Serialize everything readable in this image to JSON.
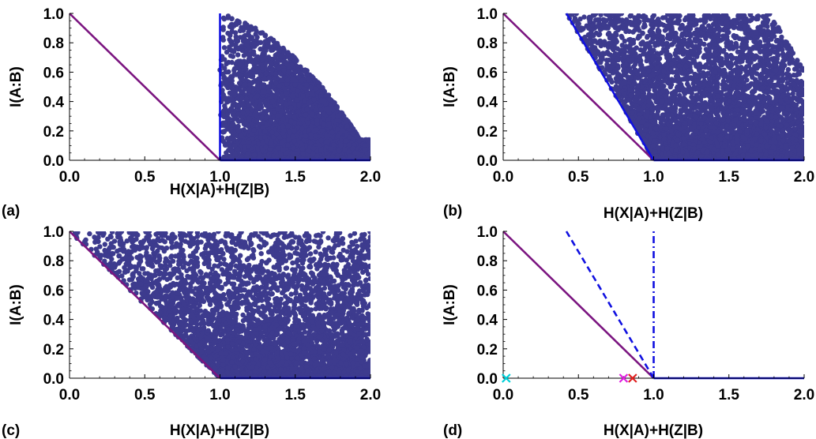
{
  "figure": {
    "panels": [
      {
        "label": "(a)",
        "xlabel": "H(X|A)+H(Z|B)",
        "ylabel": "I(A:B)"
      },
      {
        "label": "(b)",
        "xlabel": "H(X|A)+H(Z|B)",
        "ylabel": "I(A:B)"
      },
      {
        "label": "(c)",
        "xlabel": "H(X|A)+H(Z|B)",
        "ylabel": "I(A:B)"
      },
      {
        "label": "(d)",
        "xlabel": "H(X|A)+H(Z|B)",
        "ylabel": "I(A:B)"
      }
    ]
  },
  "colors": {
    "points": "#3d3b8e",
    "bound_purple": "#7b1580",
    "bound_blue": "#1010e0",
    "marker_cyan": "#00cfd8",
    "marker_magenta": "#e020e0",
    "marker_red": "#e02020"
  },
  "chart_data": [
    {
      "type": "scatter",
      "panel": "a",
      "xlabel": "H(X|A)+H(Z|B)",
      "ylabel": "I(A:B)",
      "xlim": [
        0,
        2
      ],
      "ylim": [
        0,
        1
      ],
      "xticks": [
        "0.0",
        "0.5",
        "1.0",
        "1.5",
        "2.0"
      ],
      "yticks": [
        "0.0",
        "0.2",
        "0.4",
        "0.6",
        "0.8",
        "1.0"
      ],
      "grid": false,
      "lines": [
        {
          "color": "purple",
          "style": "solid",
          "points": [
            [
              0,
              1
            ],
            [
              1,
              0
            ]
          ]
        },
        {
          "color": "blue",
          "style": "solid",
          "points": [
            [
              1,
              0
            ],
            [
              1,
              1
            ]
          ]
        },
        {
          "color": "blue",
          "style": "solid",
          "points": [
            [
              1,
              0
            ],
            [
              2,
              0
            ]
          ]
        }
      ],
      "scatter_region": {
        "description_points": [
          [
            1.0,
            1.0
          ],
          [
            1.2,
            1.0
          ],
          [
            1.5,
            0.55
          ],
          [
            1.75,
            0.35
          ],
          [
            2.0,
            0.15
          ],
          [
            2.0,
            0.0
          ],
          [
            1.0,
            0.0
          ]
        ],
        "sample_points": [
          [
            1.02,
            0.95
          ],
          [
            1.1,
            0.9
          ],
          [
            1.2,
            0.95
          ],
          [
            1.3,
            0.75
          ],
          [
            1.45,
            0.6
          ],
          [
            1.6,
            0.45
          ],
          [
            1.8,
            0.3
          ],
          [
            1.95,
            0.18
          ],
          [
            1.5,
            0.2
          ],
          [
            1.3,
            0.1
          ],
          [
            1.7,
            0.05
          ],
          [
            1.05,
            0.5
          ]
        ]
      }
    },
    {
      "type": "scatter",
      "panel": "b",
      "xlabel": "H(X|A)+H(Z|B)",
      "ylabel": "I(A:B)",
      "xlim": [
        0,
        2
      ],
      "ylim": [
        0,
        1
      ],
      "xticks": [
        "0.0",
        "0.5",
        "1.0",
        "1.5",
        "2.0"
      ],
      "yticks": [
        "0.0",
        "0.2",
        "0.4",
        "0.6",
        "0.8",
        "1.0"
      ],
      "grid": false,
      "lines": [
        {
          "color": "purple",
          "style": "solid",
          "points": [
            [
              0,
              1
            ],
            [
              1,
              0
            ]
          ]
        },
        {
          "color": "blue",
          "style": "solid",
          "points": [
            [
              0.42,
              1
            ],
            [
              1,
              0
            ]
          ]
        },
        {
          "color": "blue",
          "style": "solid",
          "points": [
            [
              1,
              0
            ],
            [
              2,
              0
            ]
          ]
        }
      ],
      "scatter_region": {
        "description_points": [
          [
            0.45,
            1.0
          ],
          [
            1.8,
            1.0
          ],
          [
            2.0,
            0.6
          ],
          [
            2.0,
            0.0
          ],
          [
            1.0,
            0.0
          ]
        ],
        "sample_points": [
          [
            0.5,
            0.95
          ],
          [
            0.8,
            0.9
          ],
          [
            1.2,
            0.85
          ],
          [
            1.5,
            0.7
          ],
          [
            1.75,
            0.95
          ],
          [
            1.9,
            0.5
          ],
          [
            1.1,
            0.4
          ],
          [
            0.9,
            0.2
          ],
          [
            1.4,
            0.3
          ],
          [
            1.6,
            0.1
          ],
          [
            1.95,
            0.05
          ],
          [
            1.3,
            0.55
          ]
        ]
      }
    },
    {
      "type": "scatter",
      "panel": "c",
      "xlabel": "H(X|A)+H(Z|B)",
      "ylabel": "I(A:B)",
      "xlim": [
        0,
        2
      ],
      "ylim": [
        0,
        1
      ],
      "xticks": [
        "0.0",
        "0.5",
        "1.0",
        "1.5",
        "2.0"
      ],
      "yticks": [
        "0.0",
        "0.2",
        "0.4",
        "0.6",
        "0.8",
        "1.0"
      ],
      "grid": false,
      "lines": [
        {
          "color": "purple",
          "style": "solid",
          "points": [
            [
              0,
              1
            ],
            [
              1,
              0
            ]
          ]
        },
        {
          "color": "blue",
          "style": "solid",
          "points": [
            [
              1,
              0
            ],
            [
              2,
              0
            ]
          ]
        }
      ],
      "scatter_region": {
        "description_points": [
          [
            0.05,
            1.0
          ],
          [
            2.0,
            1.0
          ],
          [
            2.0,
            0.0
          ],
          [
            1.0,
            0.0
          ]
        ],
        "sample_points": [
          [
            0.1,
            0.95
          ],
          [
            0.4,
            0.9
          ],
          [
            0.8,
            0.7
          ],
          [
            1.2,
            0.85
          ],
          [
            1.6,
            0.95
          ],
          [
            1.9,
            0.6
          ],
          [
            0.6,
            0.5
          ],
          [
            1.0,
            0.4
          ],
          [
            1.5,
            0.3
          ],
          [
            1.8,
            0.15
          ],
          [
            1.3,
            0.05
          ],
          [
            1.7,
            0.02
          ]
        ]
      }
    },
    {
      "type": "line",
      "panel": "d",
      "xlabel": "H(X|A)+H(Z|B)",
      "ylabel": "I(A:B)",
      "xlim": [
        0,
        2
      ],
      "ylim": [
        0,
        1
      ],
      "xticks": [
        "0.0",
        "0.5",
        "1.0",
        "1.5",
        "2.0"
      ],
      "yticks": [
        "0.0",
        "0.2",
        "0.4",
        "0.6",
        "0.8",
        "1.0"
      ],
      "grid": false,
      "lines": [
        {
          "color": "purple",
          "style": "solid",
          "points": [
            [
              0,
              1
            ],
            [
              1,
              0
            ]
          ]
        },
        {
          "color": "blue",
          "style": "dashed",
          "points": [
            [
              0.42,
              1
            ],
            [
              1,
              0
            ]
          ]
        },
        {
          "color": "blue",
          "style": "dashdot",
          "points": [
            [
              1,
              0
            ],
            [
              1,
              1
            ]
          ]
        },
        {
          "color": "blue",
          "style": "solid",
          "points": [
            [
              1,
              0
            ],
            [
              2,
              0
            ]
          ]
        }
      ],
      "markers": [
        {
          "symbol": "x",
          "color": "cyan",
          "x": 0.02,
          "y": 0.0
        },
        {
          "symbol": "x",
          "color": "magenta",
          "x": 0.8,
          "y": 0.0
        },
        {
          "symbol": "x",
          "color": "red",
          "x": 0.86,
          "y": 0.0
        }
      ]
    }
  ]
}
